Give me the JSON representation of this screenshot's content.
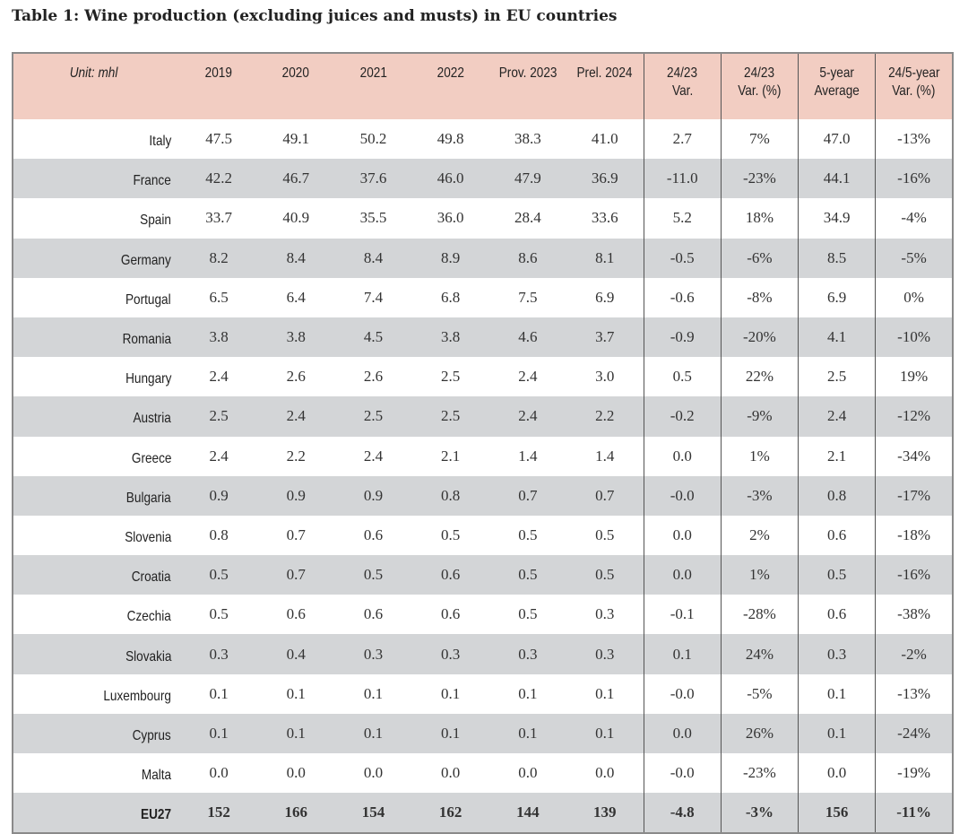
{
  "title": "Table 1: Wine production (excluding juices and musts) in EU countries",
  "headers": [
    "Unit: mhl",
    "2019",
    "2020",
    "2021",
    "2022",
    "Prov. 2023",
    "Prel. 2024",
    "24/23\nVar.",
    "24/23\nVar. (%)",
    "5-year\nAverage",
    "24/5-year\nVar. (%)"
  ],
  "rows": [
    [
      "Italy",
      "47.5",
      "49.1",
      "50.2",
      "49.8",
      "38.3",
      "41.0",
      "2.7",
      "7%",
      "47.0",
      "-13%"
    ],
    [
      "France",
      "42.2",
      "46.7",
      "37.6",
      "46.0",
      "47.9",
      "36.9",
      "-11.0",
      "-23%",
      "44.1",
      "-16%"
    ],
    [
      "Spain",
      "33.7",
      "40.9",
      "35.5",
      "36.0",
      "28.4",
      "33.6",
      "5.2",
      "18%",
      "34.9",
      "-4%"
    ],
    [
      "Germany",
      "8.2",
      "8.4",
      "8.4",
      "8.9",
      "8.6",
      "8.1",
      "-0.5",
      "-6%",
      "8.5",
      "-5%"
    ],
    [
      "Portugal",
      "6.5",
      "6.4",
      "7.4",
      "6.8",
      "7.5",
      "6.9",
      "-0.6",
      "-8%",
      "6.9",
      "0%"
    ],
    [
      "Romania",
      "3.8",
      "3.8",
      "4.5",
      "3.8",
      "4.6",
      "3.7",
      "-0.9",
      "-20%",
      "4.1",
      "-10%"
    ],
    [
      "Hungary",
      "2.4",
      "2.6",
      "2.6",
      "2.5",
      "2.4",
      "3.0",
      "0.5",
      "22%",
      "2.5",
      "19%"
    ],
    [
      "Austria",
      "2.5",
      "2.4",
      "2.5",
      "2.5",
      "2.4",
      "2.2",
      "-0.2",
      "-9%",
      "2.4",
      "-12%"
    ],
    [
      "Greece",
      "2.4",
      "2.2",
      "2.4",
      "2.1",
      "1.4",
      "1.4",
      "0.0",
      "1%",
      "2.1",
      "-34%"
    ],
    [
      "Bulgaria",
      "0.9",
      "0.9",
      "0.9",
      "0.8",
      "0.7",
      "0.7",
      "-0.0",
      "-3%",
      "0.8",
      "-17%"
    ],
    [
      "Slovenia",
      "0.8",
      "0.7",
      "0.6",
      "0.5",
      "0.5",
      "0.5",
      "0.0",
      "2%",
      "0.6",
      "-18%"
    ],
    [
      "Croatia",
      "0.5",
      "0.7",
      "0.5",
      "0.6",
      "0.5",
      "0.5",
      "0.0",
      "1%",
      "0.5",
      "-16%"
    ],
    [
      "Czechia",
      "0.5",
      "0.6",
      "0.6",
      "0.6",
      "0.5",
      "0.3",
      "-0.1",
      "-28%",
      "0.6",
      "-38%"
    ],
    [
      "Slovakia",
      "0.3",
      "0.4",
      "0.3",
      "0.3",
      "0.3",
      "0.3",
      "0.1",
      "24%",
      "0.3",
      "-2%"
    ],
    [
      "Luxembourg",
      "0.1",
      "0.1",
      "0.1",
      "0.1",
      "0.1",
      "0.1",
      "-0.0",
      "-5%",
      "0.1",
      "-13%"
    ],
    [
      "Cyprus",
      "0.1",
      "0.1",
      "0.1",
      "0.1",
      "0.1",
      "0.1",
      "0.0",
      "26%",
      "0.1",
      "-24%"
    ],
    [
      "Malta",
      "0.0",
      "0.0",
      "0.0",
      "0.0",
      "0.0",
      "0.0",
      "-0.0",
      "-23%",
      "0.0",
      "-19%"
    ],
    [
      "EU27",
      "152",
      "166",
      "154",
      "162",
      "144",
      "139",
      "-4.8",
      "-3%",
      "156",
      "-11%"
    ]
  ],
  "colors": {
    "header_bg": "#f2cdc2",
    "stripe_bg": "#d3d5d7"
  }
}
